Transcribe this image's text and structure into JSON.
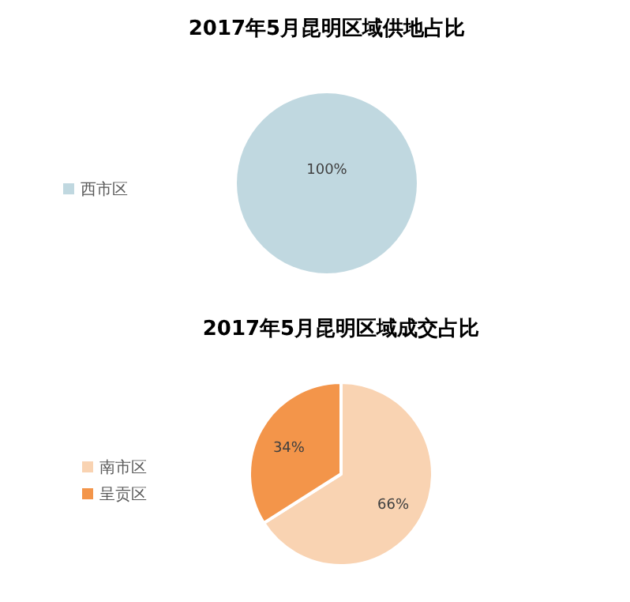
{
  "chart_data": [
    {
      "type": "pie",
      "title": "2017年5月昆明区域供地占比",
      "categories": [
        "西市区"
      ],
      "values": [
        100
      ],
      "colors": [
        "#c0d8e0"
      ],
      "value_labels": [
        "100%"
      ],
      "legend": "left"
    },
    {
      "type": "pie",
      "title": "2017年5月昆明区域成交占比",
      "categories": [
        "南市区",
        "呈贡区"
      ],
      "values": [
        66,
        34
      ],
      "colors": [
        "#f9d3b2",
        "#f3954a"
      ],
      "value_labels": [
        "66%",
        "34%"
      ],
      "legend": "left"
    }
  ]
}
